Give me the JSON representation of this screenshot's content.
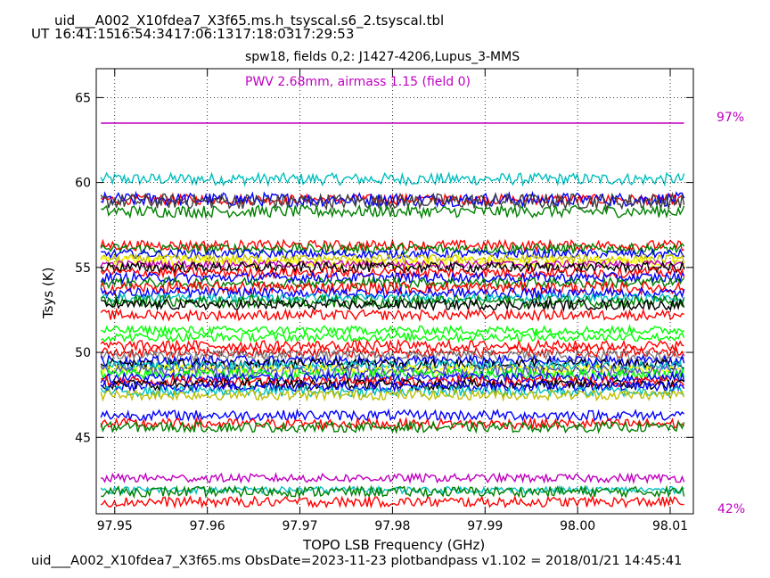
{
  "header": {
    "filename": "uid___A002_X10fdea7_X3f65.ms.h_tsyscal.s6_2.tsyscal.tbl",
    "ut_label": "UT",
    "times": [
      "16:41:15",
      "16:54:34",
      "17:06:13",
      "17:18:03",
      "17:29:53"
    ]
  },
  "plot": {
    "title": "spw18,  fields 0,2: J1427-4206,Lupus_3-MMS",
    "pwv_text": "PWV 2.68mm, airmass 1.15 (field 0)",
    "right_top_pct": "97%",
    "right_bottom_pct": "42%"
  },
  "footer": {
    "text": "uid___A002_X10fdea7_X3f65.ms  ObsDate=2023-11-23   plotbandpass v1.102 = 2018/01/21 14:45:41"
  },
  "chart_data": {
    "type": "line",
    "xlabel": "TOPO LSB Frequency (GHz)",
    "ylabel": "Tsys (K)",
    "xlim": [
      97.948,
      98.0125
    ],
    "ylim": [
      40.5,
      66.7
    ],
    "xticks": [
      97.95,
      97.96,
      97.97,
      97.98,
      97.99,
      98.0,
      98.01
    ],
    "xtick_labels": [
      "97.95",
      "97.96",
      "97.97",
      "97.98",
      "97.99",
      "98.00",
      "98.01"
    ],
    "yticks": [
      45,
      50,
      55,
      60,
      65
    ],
    "ytick_labels": [
      "45",
      "50",
      "55",
      "60",
      "65"
    ],
    "grid": true,
    "x_start": 97.9485,
    "x_end": 98.0115,
    "transmission_line_y": 63.5,
    "transmission_color": "#c000c0",
    "series": [
      {
        "color": "#00bfbf",
        "level": 60.2,
        "noise": 0.35
      },
      {
        "color": "#ff0000",
        "level": 59.0,
        "noise": 0.3
      },
      {
        "color": "#0000ff",
        "level": 59.0,
        "noise": 0.4
      },
      {
        "color": "#404040",
        "level": 58.9,
        "noise": 0.45
      },
      {
        "color": "#008000",
        "level": 58.3,
        "noise": 0.35
      },
      {
        "color": "#ff0000",
        "level": 56.3,
        "noise": 0.3
      },
      {
        "color": "#008000",
        "level": 56.1,
        "noise": 0.3
      },
      {
        "color": "#0000ff",
        "level": 55.8,
        "noise": 0.25
      },
      {
        "color": "#bfbf00",
        "level": 55.5,
        "noise": 0.25
      },
      {
        "color": "#ffff00",
        "level": 55.3,
        "noise": 0.35
      },
      {
        "color": "#c000c0",
        "level": 55.2,
        "noise": 0.2
      },
      {
        "color": "#000000",
        "level": 55.0,
        "noise": 0.3
      },
      {
        "color": "#ff0000",
        "level": 54.7,
        "noise": 0.3
      },
      {
        "color": "#0000ff",
        "level": 54.4,
        "noise": 0.3
      },
      {
        "color": "#008000",
        "level": 54.1,
        "noise": 0.3
      },
      {
        "color": "#ff0000",
        "level": 53.8,
        "noise": 0.35
      },
      {
        "color": "#0000ff",
        "level": 53.5,
        "noise": 0.3
      },
      {
        "color": "#00bfbf",
        "level": 53.2,
        "noise": 0.25
      },
      {
        "color": "#008000",
        "level": 53.0,
        "noise": 0.35
      },
      {
        "color": "#000000",
        "level": 52.8,
        "noise": 0.3
      },
      {
        "color": "#ff0000",
        "level": 52.2,
        "noise": 0.3
      },
      {
        "color": "#00ff00",
        "level": 51.3,
        "noise": 0.25
      },
      {
        "color": "#00ff00",
        "level": 50.9,
        "noise": 0.25
      },
      {
        "color": "#ff0000",
        "level": 50.4,
        "noise": 0.3
      },
      {
        "color": "#ff0000",
        "level": 50.0,
        "noise": 0.3
      },
      {
        "color": "#808080",
        "level": 49.8,
        "noise": 0.3
      },
      {
        "color": "#0000ff",
        "level": 49.5,
        "noise": 0.3
      },
      {
        "color": "#000000",
        "level": 49.3,
        "noise": 0.3
      },
      {
        "color": "#00bfbf",
        "level": 49.2,
        "noise": 0.3
      },
      {
        "color": "#ffff00",
        "level": 49.0,
        "noise": 0.25
      },
      {
        "color": "#5050c0",
        "level": 48.9,
        "noise": 0.35
      },
      {
        "color": "#00ff00",
        "level": 48.7,
        "noise": 0.3
      },
      {
        "color": "#0000ff",
        "level": 48.5,
        "noise": 0.3
      },
      {
        "color": "#ff0000",
        "level": 48.3,
        "noise": 0.3
      },
      {
        "color": "#000000",
        "level": 48.1,
        "noise": 0.3
      },
      {
        "color": "#0000ff",
        "level": 48.0,
        "noise": 0.3
      },
      {
        "color": "#00bfbf",
        "level": 47.7,
        "noise": 0.3
      },
      {
        "color": "#bfbf00",
        "level": 47.5,
        "noise": 0.3
      },
      {
        "color": "#0000ff",
        "level": 46.3,
        "noise": 0.3
      },
      {
        "color": "#ff0000",
        "level": 45.8,
        "noise": 0.3
      },
      {
        "color": "#008000",
        "level": 45.6,
        "noise": 0.3
      },
      {
        "color": "#c000c0",
        "level": 42.6,
        "noise": 0.25
      },
      {
        "color": "#00bfbf",
        "level": 41.9,
        "noise": 0.2
      },
      {
        "color": "#008000",
        "level": 41.8,
        "noise": 0.3
      },
      {
        "color": "#ff0000",
        "level": 41.2,
        "noise": 0.3
      }
    ]
  }
}
